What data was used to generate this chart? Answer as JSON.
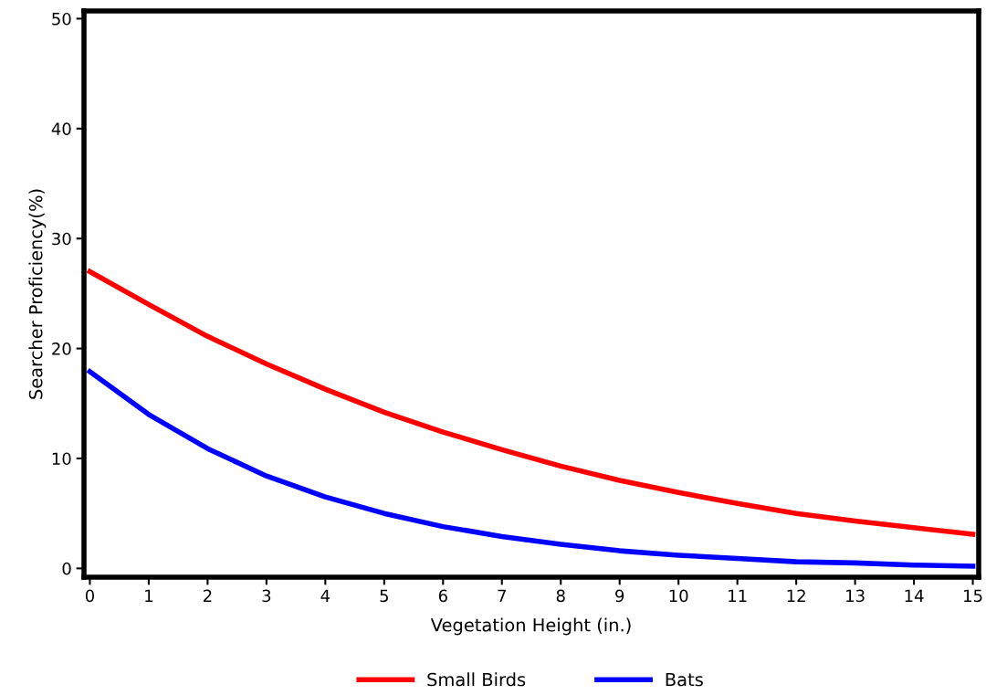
{
  "chart_data": {
    "type": "line",
    "xlabel": "Vegetation Height (in.)",
    "ylabel": "Searcher Proficiency(%)",
    "x": [
      0,
      1,
      2,
      3,
      4,
      5,
      6,
      7,
      8,
      9,
      10,
      11,
      12,
      13,
      14,
      15
    ],
    "series": [
      {
        "name": "Small Birds",
        "color": "#ff0000",
        "values": [
          27,
          24,
          21.1,
          18.6,
          16.3,
          14.2,
          12.4,
          10.8,
          9.3,
          8.0,
          6.9,
          5.9,
          5.0,
          4.3,
          3.7,
          3.1
        ]
      },
      {
        "name": "Bats",
        "color": "#0000ff",
        "values": [
          17.9,
          14.0,
          10.9,
          8.4,
          6.5,
          5.0,
          3.8,
          2.9,
          2.2,
          1.6,
          1.2,
          0.9,
          0.6,
          0.5,
          0.3,
          0.2
        ]
      }
    ],
    "xlim": [
      -0.1,
      15.1
    ],
    "ylim": [
      -0.8,
      50.7
    ],
    "xticks": [
      0,
      1,
      2,
      3,
      4,
      5,
      6,
      7,
      8,
      9,
      10,
      11,
      12,
      13,
      14,
      15
    ],
    "yticks": [
      0,
      10,
      20,
      30,
      40,
      50
    ],
    "grid": false,
    "legend": "bottom",
    "marker": "none",
    "line_style": "solid"
  }
}
